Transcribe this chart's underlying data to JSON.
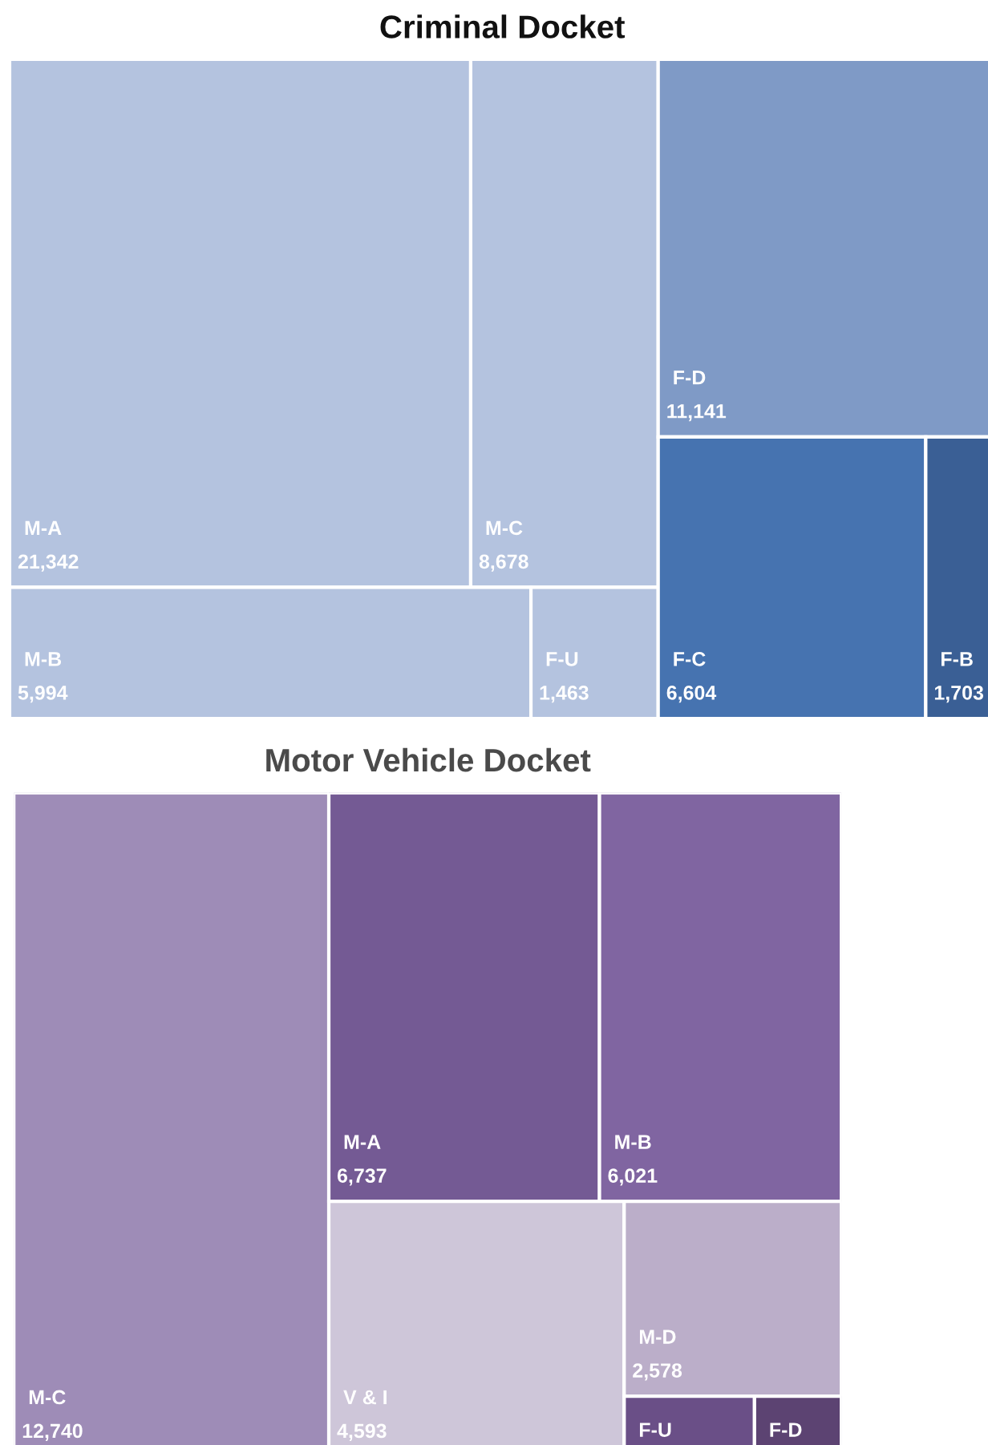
{
  "chart_data": [
    {
      "type": "other",
      "title": "Criminal Docket",
      "categories": [
        "M-A",
        "M-C",
        "M-B",
        "F-U",
        "F-D",
        "F-C",
        "F-B"
      ],
      "values": [
        21342,
        8678,
        5994,
        1463,
        11141,
        6604,
        1703
      ],
      "colors": [
        "#b4c3df",
        "#b4c3df",
        "#b4c3df",
        "#b4c3df",
        "#7f9ac6",
        "#4673b0",
        "#3a5f95"
      ],
      "value_labels": [
        "21,342",
        "8,678",
        "5,994",
        "1,463",
        "11,141",
        "6,604",
        "1,703"
      ]
    },
    {
      "type": "other",
      "title": "Motor Vehicle Docket",
      "categories": [
        "M-C",
        "M-A",
        "M-B",
        "V & I",
        "M-D",
        "F-U",
        "F-D"
      ],
      "values": [
        12740,
        6737,
        6021,
        4593,
        2578,
        null,
        null
      ],
      "colors": [
        "#9e8cb7",
        "#745a94",
        "#8065a1",
        "#cec6d9",
        "#bbaec9",
        "#6a4f87",
        "#5c4372"
      ],
      "value_labels": [
        "12,740",
        "6,737",
        "6,021",
        "4,593",
        "2,578",
        null,
        null
      ]
    }
  ]
}
